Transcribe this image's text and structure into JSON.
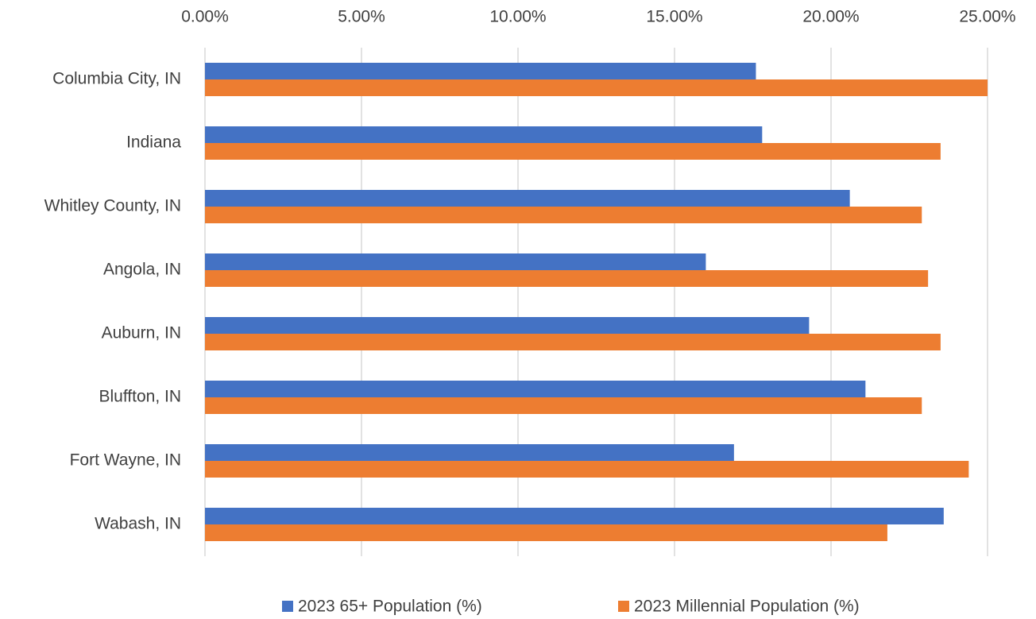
{
  "chart_data": {
    "type": "bar",
    "orientation": "horizontal",
    "categories": [
      "Columbia City, IN",
      "Indiana",
      "Whitley County, IN",
      "Angola, IN",
      "Auburn, IN",
      "Bluffton, IN",
      "Fort Wayne, IN",
      "Wabash, IN"
    ],
    "series": [
      {
        "name": "2023 65+ Population (%)",
        "color": "#4472c4",
        "values": [
          17.6,
          17.8,
          20.6,
          16.0,
          19.3,
          21.1,
          16.9,
          23.6
        ]
      },
      {
        "name": "2023 Millennial Population (%)",
        "color": "#ed7d31",
        "values": [
          25.0,
          23.5,
          22.9,
          23.1,
          23.5,
          22.9,
          24.4,
          21.8
        ]
      }
    ],
    "xlim": [
      0,
      25
    ],
    "xticks": [
      {
        "value": 0,
        "label": "0.00%"
      },
      {
        "value": 5,
        "label": "5.00%"
      },
      {
        "value": 10,
        "label": "10.00%"
      },
      {
        "value": 15,
        "label": "15.00%"
      },
      {
        "value": 20,
        "label": "20.00%"
      },
      {
        "value": 25,
        "label": "25.00%"
      }
    ],
    "grid": true,
    "legend": "bottom"
  }
}
